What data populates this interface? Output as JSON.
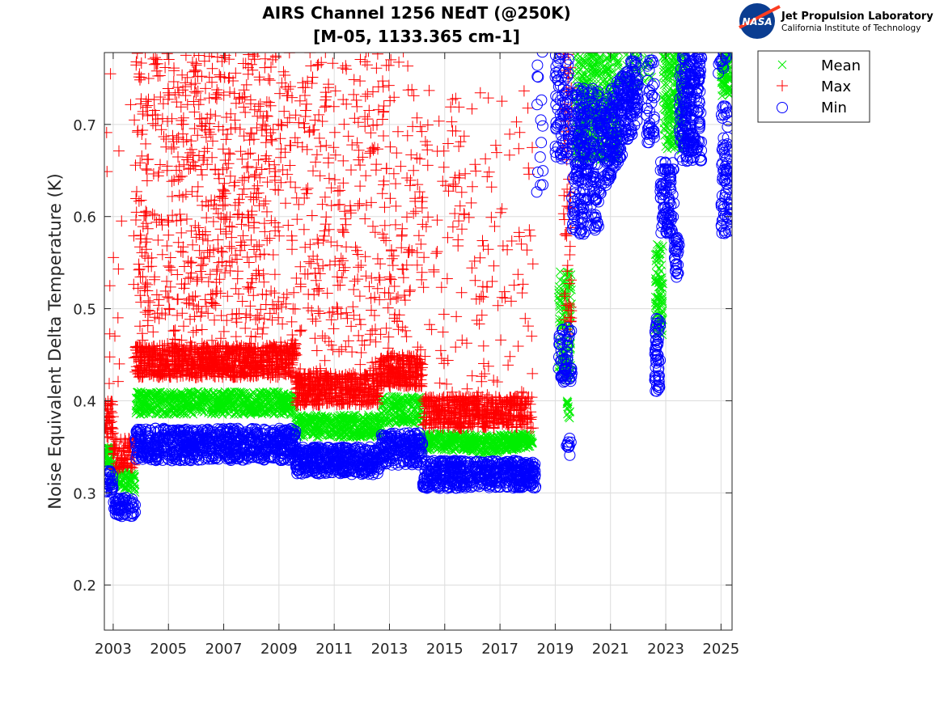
{
  "logo": {
    "emblem_text": "NASA",
    "line1": "Jet Propulsion Laboratory",
    "line2": "California Institute of Technology"
  },
  "colors": {
    "mean": "#00ee00",
    "max": "#ff0000",
    "min": "#0000ff",
    "grid": "#dcdcdc",
    "axis": "#262626"
  },
  "chart_data": {
    "type": "scatter",
    "title": "AIRS Channel 1256 NEdT (@250K)",
    "subtitle": "[M-05, 1133.365 cm-1]",
    "xlabel": "",
    "ylabel": "Noise Equivalent Delta Temperature (K)",
    "xlim": [
      2002.68,
      2025.4
    ],
    "ylim": [
      0.151,
      0.778
    ],
    "xticks": [
      2003,
      2005,
      2007,
      2009,
      2011,
      2013,
      2015,
      2017,
      2019,
      2021,
      2023,
      2025
    ],
    "xtick_labels": [
      "2003",
      "2005",
      "2007",
      "2009",
      "2011",
      "2013",
      "2015",
      "2017",
      "2019",
      "2021",
      "2023",
      "2025"
    ],
    "yticks": [
      0.2,
      0.3,
      0.4,
      0.5,
      0.6,
      0.7
    ],
    "ytick_labels": [
      "0.2",
      "0.3",
      "0.4",
      "0.5",
      "0.6",
      "0.7"
    ],
    "grid": true,
    "legend": {
      "placement": "outside-top-right",
      "entries": [
        "Mean",
        "Max",
        "Min"
      ]
    },
    "series": [
      {
        "name": "Mean",
        "marker": "x",
        "clusters": [
          {
            "x": [
              2002.7,
              2002.95
            ],
            "y": [
              0.33,
              0.35
            ],
            "n": 40
          },
          {
            "x": [
              2002.95,
              2003.8
            ],
            "y": [
              0.31,
              0.335
            ],
            "y_end": [
              0.3,
              0.32
            ],
            "n": 80
          },
          {
            "x": [
              2003.8,
              2009.6
            ],
            "y": [
              0.385,
              0.41
            ],
            "n": 700
          },
          {
            "x": [
              2009.6,
              2012.7
            ],
            "y": [
              0.36,
              0.385
            ],
            "n": 380
          },
          {
            "x": [
              2012.7,
              2014.2
            ],
            "y": [
              0.375,
              0.405
            ],
            "n": 180
          },
          {
            "x": [
              2014.2,
              2016.2
            ],
            "y": [
              0.345,
              0.365
            ],
            "n": 240
          },
          {
            "x": [
              2016.2,
              2018.2
            ],
            "y": [
              0.34,
              0.362
            ],
            "y_end": [
              0.35,
              0.365
            ],
            "n": 240
          },
          {
            "x": [
              2019.1,
              2019.6
            ],
            "y": [
              0.42,
              0.54
            ],
            "n": 120
          },
          {
            "x": [
              2019.4,
              2019.55
            ],
            "y": [
              0.38,
              0.4
            ],
            "n": 12
          },
          {
            "x": [
              2019.7,
              2021.3
            ],
            "y": [
              0.66,
              0.78
            ],
            "n": 380
          },
          {
            "x": [
              2021.3,
              2022.5
            ],
            "y": [
              0.74,
              0.78
            ],
            "n": 40
          },
          {
            "x": [
              2022.6,
              2022.9
            ],
            "y": [
              0.47,
              0.57
            ],
            "n": 90
          },
          {
            "x": [
              2022.9,
              2023.7
            ],
            "y": [
              0.67,
              0.78
            ],
            "n": 200
          },
          {
            "x": [
              2025.0,
              2025.35
            ],
            "y": [
              0.73,
              0.78
            ],
            "n": 80
          }
        ]
      },
      {
        "name": "Max",
        "marker": "+",
        "clusters": [
          {
            "x": [
              2002.7,
              2003.0
            ],
            "y": [
              0.36,
              0.4
            ],
            "n": 40
          },
          {
            "x": [
              2003.0,
              2003.8
            ],
            "y": [
              0.325,
              0.36
            ],
            "n": 80
          },
          {
            "x": [
              2003.8,
              2009.6
            ],
            "y": [
              0.425,
              0.46
            ],
            "n": 900
          },
          {
            "x": [
              2003.8,
              2009.6
            ],
            "y": [
              0.46,
              0.78
            ],
            "n": 700
          },
          {
            "x": [
              2009.6,
              2012.6
            ],
            "y": [
              0.395,
              0.43
            ],
            "n": 450
          },
          {
            "x": [
              2009.6,
              2012.6
            ],
            "y": [
              0.43,
              0.78
            ],
            "n": 260
          },
          {
            "x": [
              2012.6,
              2014.2
            ],
            "y": [
              0.415,
              0.45
            ],
            "n": 240
          },
          {
            "x": [
              2012.6,
              2014.2
            ],
            "y": [
              0.45,
              0.78
            ],
            "n": 120
          },
          {
            "x": [
              2014.2,
              2018.2
            ],
            "y": [
              0.37,
              0.405
            ],
            "n": 500
          },
          {
            "x": [
              2014.2,
              2018.2
            ],
            "y": [
              0.405,
              0.74
            ],
            "n": 160
          },
          {
            "x": [
              2002.7,
              2003.8
            ],
            "y": [
              0.4,
              0.76
            ],
            "n": 20
          },
          {
            "x": [
              2019.3,
              2019.6
            ],
            "y": [
              0.47,
              0.78
            ],
            "n": 60
          }
        ]
      },
      {
        "name": "Min",
        "marker": "o",
        "clusters": [
          {
            "x": [
              2002.7,
              2003.0
            ],
            "y": [
              0.3,
              0.325
            ],
            "n": 30
          },
          {
            "x": [
              2003.0,
              2003.8
            ],
            "y": [
              0.272,
              0.295
            ],
            "n": 60
          },
          {
            "x": [
              2003.8,
              2009.6
            ],
            "y": [
              0.335,
              0.37
            ],
            "n": 700
          },
          {
            "x": [
              2009.6,
              2012.7
            ],
            "y": [
              0.32,
              0.35
            ],
            "n": 380
          },
          {
            "x": [
              2012.7,
              2014.2
            ],
            "y": [
              0.33,
              0.365
            ],
            "n": 180
          },
          {
            "x": [
              2014.2,
              2018.3
            ],
            "y": [
              0.305,
              0.335
            ],
            "n": 480
          },
          {
            "x": [
              2018.3,
              2018.6
            ],
            "y": [
              0.62,
              0.78
            ],
            "n": 15
          },
          {
            "x": [
              2019.0,
              2019.5
            ],
            "y": [
              0.66,
              0.78
            ],
            "n": 80
          },
          {
            "x": [
              2019.1,
              2019.6
            ],
            "y": [
              0.42,
              0.48
            ],
            "n": 60
          },
          {
            "x": [
              2019.4,
              2019.6
            ],
            "y": [
              0.34,
              0.36
            ],
            "n": 10
          },
          {
            "x": [
              2019.6,
              2020.6
            ],
            "y": [
              0.58,
              0.74
            ],
            "n": 260
          },
          {
            "x": [
              2020.6,
              2022.0
            ],
            "y": [
              0.62,
              0.72
            ],
            "y_end": [
              0.7,
              0.78
            ],
            "n": 300
          },
          {
            "x": [
              2022.3,
              2022.6
            ],
            "y": [
              0.68,
              0.77
            ],
            "n": 40
          },
          {
            "x": [
              2022.6,
              2022.8
            ],
            "y": [
              0.41,
              0.49
            ],
            "n": 50
          },
          {
            "x": [
              2022.8,
              2023.3
            ],
            "y": [
              0.58,
              0.66
            ],
            "n": 90
          },
          {
            "x": [
              2023.3,
              2023.5
            ],
            "y": [
              0.53,
              0.58
            ],
            "n": 30
          },
          {
            "x": [
              2023.5,
              2024.3
            ],
            "y": [
              0.66,
              0.78
            ],
            "n": 220
          },
          {
            "x": [
              2025.0,
              2025.35
            ],
            "y": [
              0.58,
              0.72
            ],
            "n": 80
          },
          {
            "x": [
              2024.9,
              2025.2
            ],
            "y": [
              0.75,
              0.78
            ],
            "n": 12
          }
        ]
      }
    ]
  }
}
